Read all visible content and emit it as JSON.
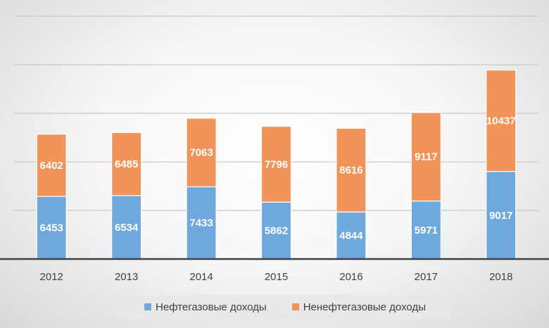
{
  "chart_data": {
    "type": "bar",
    "stacked": true,
    "categories": [
      "2012",
      "2013",
      "2014",
      "2015",
      "2016",
      "2017",
      "2018"
    ],
    "series": [
      {
        "name": "Нефтегазовые доходы",
        "color": "#6fa8dc",
        "values": [
          6453,
          6534,
          7433,
          5862,
          4844,
          5971,
          9017
        ]
      },
      {
        "name": "Ненефтегазовые доходы",
        "color": "#f0945a",
        "values": [
          6402,
          6485,
          7063,
          7796,
          8616,
          9117,
          10437
        ]
      }
    ],
    "ylim": [
      0,
      25000
    ],
    "grid": true,
    "y_tick_labels_shown": false,
    "legend_position": "bottom"
  }
}
